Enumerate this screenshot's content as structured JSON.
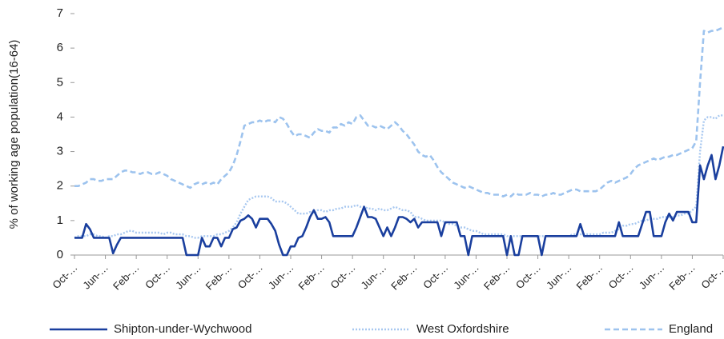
{
  "chart_data": {
    "type": "line",
    "y_label": "% of working age population(16-64)",
    "categories": [
      "Oct-…",
      null,
      null,
      null,
      null,
      null,
      null,
      null,
      "Jun-…",
      null,
      null,
      null,
      null,
      null,
      null,
      null,
      "Feb-…",
      null,
      null,
      null,
      null,
      null,
      null,
      null,
      "Oct-…",
      null,
      null,
      null,
      null,
      null,
      null,
      null,
      "Jun-…",
      null,
      null,
      null,
      null,
      null,
      null,
      null,
      "Feb-…",
      null,
      null,
      null,
      null,
      null,
      null,
      null,
      "Oct-…",
      null,
      null,
      null,
      null,
      null,
      null,
      null,
      "Jun-…",
      null,
      null,
      null,
      null,
      null,
      null,
      null,
      "Feb-…",
      null,
      null,
      null,
      null,
      null,
      null,
      null,
      "Oct-…",
      null,
      null,
      null,
      null,
      null,
      null,
      null,
      "Jun-…",
      null,
      null,
      null,
      null,
      null,
      null,
      null,
      "Feb-…",
      null,
      null,
      null,
      null,
      null,
      null,
      null,
      "Oct-…",
      null,
      null,
      null,
      null,
      null,
      null,
      null,
      "Jun-…",
      null,
      null,
      null,
      null,
      null,
      null,
      null,
      "Feb-…",
      null,
      null,
      null,
      null,
      null,
      null,
      null,
      "Oct-…",
      null,
      null,
      null,
      null,
      null,
      null,
      null,
      "Jun-…",
      null,
      null,
      null,
      null,
      null,
      null,
      null,
      "Feb-…",
      null,
      null,
      null,
      null,
      null,
      null,
      null,
      "Oct-…",
      null,
      null,
      null,
      null,
      null,
      null,
      null,
      "Jun-…",
      null,
      null,
      null,
      null,
      null,
      null,
      null,
      "Feb-…",
      null,
      null,
      null,
      null,
      null,
      null,
      null,
      "Oct-…"
    ],
    "series": [
      {
        "name": "Shipton-under-Wychwood",
        "color": "#1a3f9e",
        "style": "solid",
        "values": [
          0.5,
          0.5,
          0.5,
          0.9,
          0.75,
          0.5,
          0.5,
          0.5,
          0.5,
          0.5,
          0.05,
          0.3,
          0.5,
          0.5,
          0.5,
          0.5,
          0.5,
          0.5,
          0.5,
          0.5,
          0.5,
          0.5,
          0.5,
          0.5,
          0.5,
          0.5,
          0.5,
          0.5,
          0.5,
          0,
          0,
          0,
          0,
          0.5,
          0.25,
          0.25,
          0.5,
          0.5,
          0.25,
          0.5,
          0.5,
          0.75,
          0.8,
          1.0,
          1.05,
          1.15,
          1.05,
          0.8,
          1.05,
          1.05,
          1.05,
          0.9,
          0.7,
          0.3,
          0,
          0,
          0.25,
          0.25,
          0.5,
          0.55,
          0.8,
          1.1,
          1.3,
          1.05,
          1.05,
          1.1,
          0.95,
          0.55,
          0.55,
          0.55,
          0.55,
          0.55,
          0.55,
          0.8,
          1.1,
          1.4,
          1.1,
          1.1,
          1.05,
          0.8,
          0.55,
          0.8,
          0.55,
          0.8,
          1.1,
          1.1,
          1.05,
          0.95,
          1.05,
          0.8,
          0.95,
          0.95,
          0.95,
          0.95,
          0.95,
          0.55,
          0.95,
          0.95,
          0.95,
          0.95,
          0.55,
          0.55,
          0,
          0.55,
          0.55,
          0.55,
          0.55,
          0.55,
          0.55,
          0.55,
          0.55,
          0.55,
          0,
          0.55,
          0,
          0,
          0.55,
          0.55,
          0.55,
          0.55,
          0.55,
          0,
          0.55,
          0.55,
          0.55,
          0.55,
          0.55,
          0.55,
          0.55,
          0.55,
          0.55,
          0.9,
          0.55,
          0.55,
          0.55,
          0.55,
          0.55,
          0.55,
          0.55,
          0.55,
          0.55,
          0.95,
          0.55,
          0.55,
          0.55,
          0.55,
          0.55,
          0.9,
          1.25,
          1.25,
          0.55,
          0.55,
          0.55,
          0.95,
          1.2,
          1.0,
          1.25,
          1.25,
          1.25,
          1.25,
          0.95,
          0.95,
          2.6,
          2.2,
          2.6,
          2.9,
          2.2,
          2.6,
          3.15
        ]
      },
      {
        "name": "West Oxfordshire",
        "color": "#a8c8f0",
        "style": "dotted",
        "values": [
          0.5,
          0.55,
          0.55,
          0.55,
          0.6,
          0.6,
          0.55,
          0.55,
          0.5,
          0.55,
          0.55,
          0.6,
          0.6,
          0.65,
          0.7,
          0.7,
          0.65,
          0.65,
          0.65,
          0.65,
          0.65,
          0.65,
          0.65,
          0.6,
          0.65,
          0.65,
          0.6,
          0.6,
          0.6,
          0.55,
          0.55,
          0.5,
          0.5,
          0.55,
          0.55,
          0.55,
          0.55,
          0.6,
          0.6,
          0.65,
          0.7,
          0.8,
          0.95,
          1.2,
          1.4,
          1.6,
          1.65,
          1.7,
          1.7,
          1.7,
          1.7,
          1.65,
          1.55,
          1.55,
          1.55,
          1.5,
          1.4,
          1.3,
          1.2,
          1.2,
          1.2,
          1.25,
          1.2,
          1.3,
          1.3,
          1.25,
          1.3,
          1.3,
          1.35,
          1.35,
          1.4,
          1.4,
          1.4,
          1.45,
          1.4,
          1.4,
          1.35,
          1.35,
          1.3,
          1.35,
          1.3,
          1.3,
          1.35,
          1.4,
          1.35,
          1.3,
          1.3,
          1.25,
          1.1,
          1.1,
          1.05,
          1.0,
          1.0,
          1.0,
          1.0,
          1.0,
          0.95,
          0.9,
          0.9,
          0.85,
          0.8,
          0.8,
          0.75,
          0.7,
          0.7,
          0.65,
          0.6,
          0.6,
          0.6,
          0.6,
          0.6,
          0.6,
          0.55,
          0.55,
          0.55,
          0.55,
          0.55,
          0.55,
          0.55,
          0.55,
          0.55,
          0.55,
          0.55,
          0.55,
          0.55,
          0.55,
          0.55,
          0.55,
          0.55,
          0.6,
          0.6,
          0.6,
          0.6,
          0.6,
          0.6,
          0.6,
          0.6,
          0.65,
          0.65,
          0.65,
          0.7,
          0.75,
          0.85,
          0.85,
          0.9,
          0.9,
          0.95,
          1.0,
          1.0,
          1.05,
          1.05,
          1.05,
          1.1,
          1.1,
          1.1,
          1.1,
          1.15,
          1.15,
          1.2,
          1.2,
          1.3,
          1.4,
          3.0,
          3.9,
          4.0,
          4.0,
          3.95,
          4.05,
          4.05
        ]
      },
      {
        "name": "England",
        "color": "#9dc3ee",
        "style": "dashed",
        "values": [
          2.0,
          2.0,
          2.05,
          2.1,
          2.2,
          2.2,
          2.15,
          2.15,
          2.2,
          2.2,
          2.2,
          2.3,
          2.4,
          2.45,
          2.45,
          2.4,
          2.4,
          2.35,
          2.4,
          2.4,
          2.35,
          2.35,
          2.4,
          2.35,
          2.3,
          2.2,
          2.15,
          2.1,
          2.05,
          2.0,
          1.95,
          2.05,
          2.1,
          2.05,
          2.1,
          2.05,
          2.1,
          2.05,
          2.2,
          2.3,
          2.4,
          2.6,
          2.9,
          3.3,
          3.75,
          3.8,
          3.85,
          3.85,
          3.9,
          3.85,
          3.9,
          3.9,
          3.85,
          4.0,
          3.95,
          3.8,
          3.6,
          3.45,
          3.5,
          3.5,
          3.45,
          3.4,
          3.55,
          3.65,
          3.6,
          3.6,
          3.55,
          3.7,
          3.7,
          3.8,
          3.75,
          3.85,
          3.8,
          4.0,
          4.05,
          3.9,
          3.75,
          3.75,
          3.7,
          3.75,
          3.7,
          3.65,
          3.75,
          3.85,
          3.75,
          3.6,
          3.5,
          3.35,
          3.2,
          3.0,
          2.9,
          2.85,
          2.9,
          2.75,
          2.55,
          2.4,
          2.3,
          2.2,
          2.1,
          2.05,
          2.0,
          1.95,
          2.0,
          1.95,
          1.9,
          1.85,
          1.8,
          1.8,
          1.75,
          1.75,
          1.75,
          1.7,
          1.75,
          1.7,
          1.8,
          1.75,
          1.75,
          1.75,
          1.8,
          1.75,
          1.75,
          1.7,
          1.75,
          1.75,
          1.8,
          1.75,
          1.75,
          1.8,
          1.85,
          1.9,
          1.9,
          1.85,
          1.85,
          1.85,
          1.85,
          1.85,
          1.9,
          2.0,
          2.1,
          2.15,
          2.1,
          2.15,
          2.2,
          2.25,
          2.35,
          2.5,
          2.6,
          2.65,
          2.7,
          2.75,
          2.8,
          2.75,
          2.8,
          2.85,
          2.85,
          2.9,
          2.9,
          2.95,
          3.0,
          3.05,
          3.1,
          3.3,
          5.0,
          6.5,
          6.45,
          6.5,
          6.5,
          6.55,
          6.6
        ]
      }
    ],
    "ylim": [
      0,
      7
    ],
    "yticks": [
      0,
      1,
      2,
      3,
      4,
      5,
      6,
      7
    ],
    "grid": false,
    "legend": "bottom"
  }
}
